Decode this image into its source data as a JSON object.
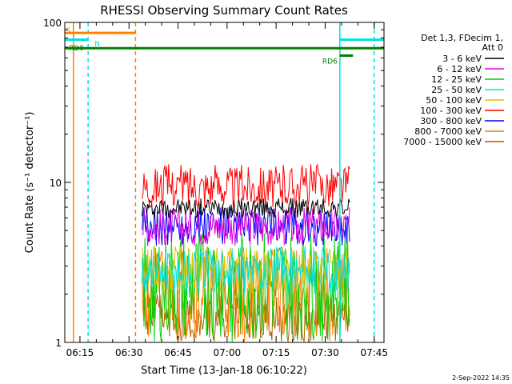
{
  "chart_data": {
    "type": "line",
    "title": "RHESSI Observing Summary Count Rates",
    "xlabel": "Start Time (13-Jan-18 06:10:22)",
    "ylabel": "Count Rate (s⁻¹ detector⁻¹)",
    "yscale": "log",
    "ylim": [
      1,
      100
    ],
    "xlim": [
      "06:10:22",
      "07:48:00"
    ],
    "xticks": [
      "06:15",
      "06:30",
      "06:45",
      "07:00",
      "07:15",
      "07:30",
      "07:45"
    ],
    "yticks": [
      "1",
      "10",
      "100"
    ],
    "footer_date": "2-Sep-2022 14:35",
    "legend": {
      "position": "right",
      "header": [
        "Det 1,3, FDecim 1,",
        "Att 0"
      ],
      "entries": [
        {
          "label": "3 - 6 keV",
          "color": "#000000"
        },
        {
          "label": "6 - 12 keV",
          "color": "#e000e0"
        },
        {
          "label": "12 - 25 keV",
          "color": "#00d000"
        },
        {
          "label": "25 - 50 keV",
          "color": "#00e0e0"
        },
        {
          "label": "50 - 100 keV",
          "color": "#e0c000"
        },
        {
          "label": "100 - 300 keV",
          "color": "#ff0000"
        },
        {
          "label": "300 - 800 keV",
          "color": "#0000ff"
        },
        {
          "label": "800 - 7000 keV",
          "color": "#ff8000"
        },
        {
          "label": "7000 - 15000 keV",
          "color": "#b06000"
        }
      ]
    },
    "vertical_markers": [
      {
        "time": "06:13:00",
        "color": "#ff8000",
        "style": "solid"
      },
      {
        "time": "06:17:30",
        "color": "#00e0e0",
        "style": "dashed"
      },
      {
        "time": "06:32:00",
        "color": "#ff8000",
        "style": "dashed"
      },
      {
        "time": "07:34:30",
        "color": "#00e0e0",
        "style": "solid"
      },
      {
        "time": "07:45:00",
        "color": "#00e0e0",
        "style": "dashed"
      }
    ],
    "flag_bars": [
      {
        "label": "S",
        "start": "06:10:22",
        "end": "06:32:00",
        "value": 86,
        "color": "#ff8000"
      },
      {
        "label": "N",
        "start": "06:10:22",
        "end": "06:17:30",
        "value": 78,
        "color": "#00e0e0"
      },
      {
        "label": "",
        "start": "07:34:30",
        "end": "07:48:00",
        "value": 78,
        "color": "#00e0e0"
      },
      {
        "label": "RD0",
        "start": "06:10:22",
        "end": "07:48:00",
        "value": 69,
        "color": "#008000"
      },
      {
        "label": "RD6",
        "start": "07:34:30",
        "end": "07:38:30",
        "value": 62,
        "color": "#008000"
      }
    ],
    "data_span": {
      "start": "06:34:00",
      "end": "07:37:30"
    },
    "bands": [
      {
        "name": "3 - 6 keV",
        "color": "#000000",
        "low": 6,
        "high": 8
      },
      {
        "name": "6 - 12 keV",
        "color": "#e000e0",
        "low": 4,
        "high": 7
      },
      {
        "name": "12 - 25 keV",
        "color": "#00d000",
        "low": 1,
        "high": 5
      },
      {
        "name": "25 - 50 keV",
        "color": "#00e0e0",
        "low": 2,
        "high": 4
      },
      {
        "name": "50 - 100 keV",
        "color": "#e0c000",
        "low": 2,
        "high": 4
      },
      {
        "name": "100 - 300 keV",
        "color": "#ff0000",
        "low": 7,
        "high": 13
      },
      {
        "name": "300 - 800 keV",
        "color": "#0000ff",
        "low": 4,
        "high": 7
      },
      {
        "name": "800 - 7000 keV",
        "color": "#ff8000",
        "low": 1,
        "high": 4
      },
      {
        "name": "7000 - 15000 keV",
        "color": "#b06000",
        "low": 1,
        "high": 2
      }
    ]
  }
}
